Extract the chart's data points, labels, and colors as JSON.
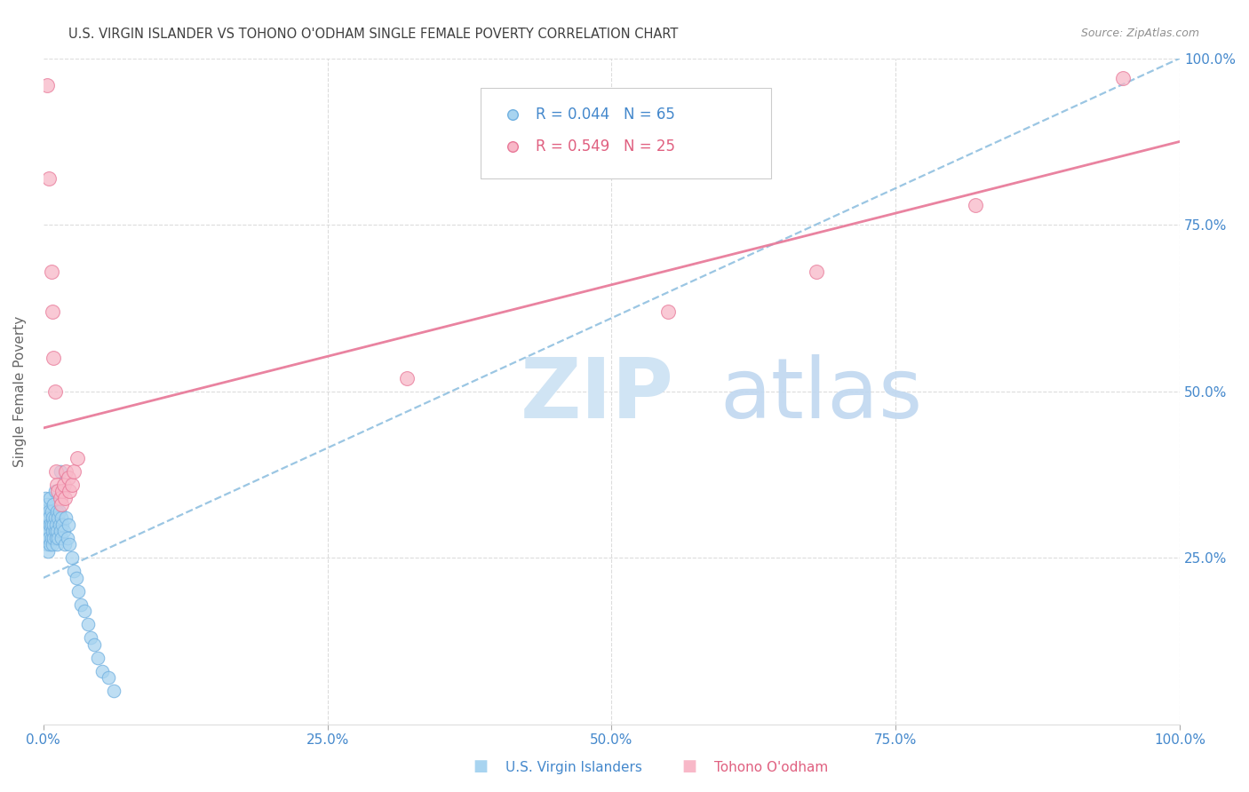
{
  "title": "U.S. VIRGIN ISLANDER VS TOHONO O'ODHAM SINGLE FEMALE POVERTY CORRELATION CHART",
  "source": "Source: ZipAtlas.com",
  "ylabel": "Single Female Poverty",
  "legend": {
    "blue_r": 0.044,
    "blue_n": 65,
    "pink_r": 0.549,
    "pink_n": 25
  },
  "blue_points_x": [
    0.001,
    0.001,
    0.002,
    0.002,
    0.002,
    0.003,
    0.003,
    0.003,
    0.003,
    0.004,
    0.004,
    0.004,
    0.004,
    0.005,
    0.005,
    0.005,
    0.005,
    0.006,
    0.006,
    0.006,
    0.007,
    0.007,
    0.007,
    0.008,
    0.008,
    0.008,
    0.009,
    0.009,
    0.009,
    0.01,
    0.01,
    0.01,
    0.011,
    0.011,
    0.012,
    0.012,
    0.012,
    0.013,
    0.013,
    0.014,
    0.014,
    0.015,
    0.015,
    0.016,
    0.016,
    0.017,
    0.018,
    0.019,
    0.02,
    0.021,
    0.022,
    0.023,
    0.025,
    0.027,
    0.029,
    0.031,
    0.033,
    0.036,
    0.039,
    0.042,
    0.045,
    0.048,
    0.052,
    0.057,
    0.062
  ],
  "blue_points_y": [
    0.32,
    0.29,
    0.31,
    0.28,
    0.34,
    0.3,
    0.27,
    0.33,
    0.29,
    0.28,
    0.31,
    0.3,
    0.26,
    0.32,
    0.29,
    0.28,
    0.31,
    0.3,
    0.27,
    0.34,
    0.28,
    0.32,
    0.3,
    0.29,
    0.31,
    0.27,
    0.3,
    0.33,
    0.28,
    0.31,
    0.29,
    0.35,
    0.28,
    0.3,
    0.32,
    0.27,
    0.29,
    0.31,
    0.28,
    0.3,
    0.32,
    0.29,
    0.38,
    0.31,
    0.28,
    0.3,
    0.29,
    0.27,
    0.31,
    0.28,
    0.3,
    0.27,
    0.25,
    0.23,
    0.22,
    0.2,
    0.18,
    0.17,
    0.15,
    0.13,
    0.12,
    0.1,
    0.08,
    0.07,
    0.05
  ],
  "pink_points_x": [
    0.003,
    0.005,
    0.007,
    0.008,
    0.009,
    0.01,
    0.011,
    0.012,
    0.013,
    0.015,
    0.016,
    0.017,
    0.018,
    0.019,
    0.02,
    0.022,
    0.023,
    0.025,
    0.027,
    0.03,
    0.32,
    0.55,
    0.68,
    0.82,
    0.95
  ],
  "pink_points_y": [
    0.96,
    0.82,
    0.68,
    0.62,
    0.55,
    0.5,
    0.38,
    0.36,
    0.35,
    0.34,
    0.33,
    0.35,
    0.36,
    0.34,
    0.38,
    0.37,
    0.35,
    0.36,
    0.38,
    0.4,
    0.52,
    0.62,
    0.68,
    0.78,
    0.97
  ],
  "blue_line_x": [
    0.0,
    1.0
  ],
  "blue_line_y": [
    0.22,
    1.0
  ],
  "pink_line_x": [
    0.0,
    1.0
  ],
  "pink_line_y": [
    0.445,
    0.875
  ],
  "ytick_labels": [
    "25.0%",
    "50.0%",
    "75.0%",
    "100.0%"
  ],
  "ytick_values": [
    0.25,
    0.5,
    0.75,
    1.0
  ],
  "xtick_labels": [
    "0.0%",
    "25.0%",
    "50.0%",
    "75.0%",
    "100.0%"
  ],
  "xtick_values": [
    0.0,
    0.25,
    0.5,
    0.75,
    1.0
  ],
  "blue_scatter_color": "#A8D4F0",
  "blue_scatter_edge": "#70B0E0",
  "pink_scatter_color": "#F8B8C8",
  "pink_scatter_edge": "#E87898",
  "blue_line_color": "#90C0E0",
  "pink_line_color": "#E87898",
  "grid_color": "#DCDCDC",
  "title_color": "#404040",
  "source_color": "#909090",
  "axis_tick_color": "#4488CC",
  "watermark_zip_color": "#D0E4F4",
  "watermark_atlas_color": "#C0D8F0",
  "legend_blue_color": "#4488CC",
  "legend_pink_color": "#E06080",
  "legend_box_edge": "#CCCCCC"
}
